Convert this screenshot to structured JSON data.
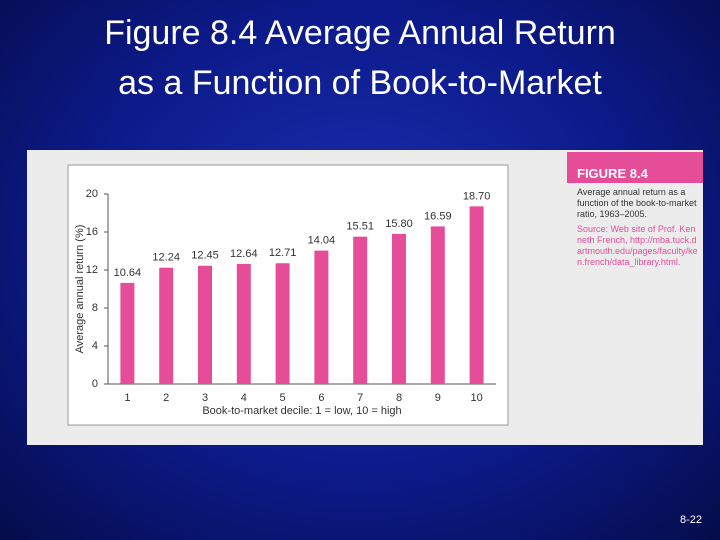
{
  "slide_title": [
    "Figure 8.4 Average Annual Return",
    "as a Function of Book-to-Market"
  ],
  "caption": {
    "heading": "FIGURE 8.4",
    "text": "Average annual return as a function of the book-to-market ratio, 1963–2005.",
    "source": "Source: Web site of Prof. Kenneth French, http://mba.tuck.dartmouth.edu/pages/faculty/ken.french/data_library.html."
  },
  "slide_number": "8-22",
  "chart_data": {
    "type": "bar",
    "categories": [
      "1",
      "2",
      "3",
      "4",
      "5",
      "6",
      "7",
      "8",
      "9",
      "10"
    ],
    "values": [
      10.64,
      12.24,
      12.45,
      12.64,
      12.71,
      14.04,
      15.51,
      15.8,
      16.59,
      18.7
    ],
    "value_labels": [
      "10.64",
      "12.24",
      "12.45",
      "12.64",
      "12.71",
      "14.04",
      "15.51",
      "15.80",
      "16.59",
      "18.70"
    ],
    "color": "#e64d98",
    "x_label": "Book-to-market decile: 1 = low, 10 = high",
    "y_label": "Average annual return (%)",
    "ylim": [
      0,
      20
    ],
    "yticks": [
      0,
      4,
      8,
      12,
      16,
      20
    ]
  }
}
